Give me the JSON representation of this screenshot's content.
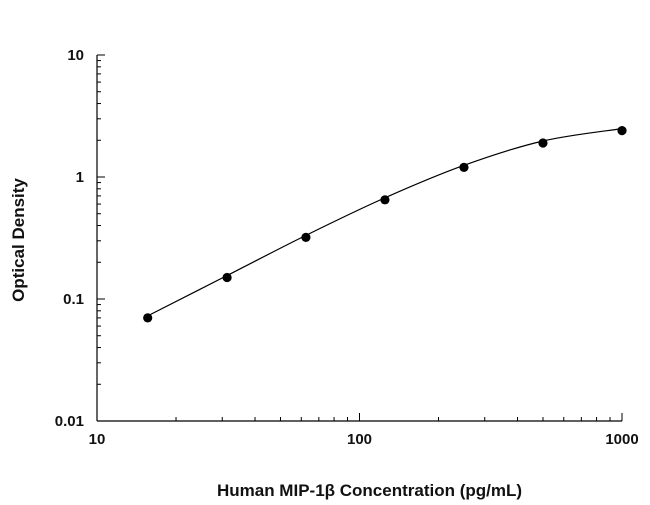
{
  "chart_data": {
    "type": "scatter",
    "title": "",
    "xlabel": "Human MIP-1β Concentration (pg/mL)",
    "ylabel": "Optical Density",
    "xscale": "log",
    "yscale": "log",
    "xlim": [
      10,
      1000
    ],
    "ylim": [
      0.01,
      10
    ],
    "x_ticks": [
      "10",
      "100",
      "1000"
    ],
    "y_ticks": [
      "10",
      "1",
      "0.1",
      "0.01"
    ],
    "grid": false,
    "legend": "none",
    "series": [
      {
        "points": {
          "x": [
            15.6,
            31.3,
            62.5,
            125,
            250,
            500,
            1000
          ],
          "y": [
            0.07,
            0.15,
            0.32,
            0.65,
            1.2,
            1.9,
            2.4
          ]
        },
        "fit_curve": true,
        "color": "#000000"
      }
    ]
  }
}
